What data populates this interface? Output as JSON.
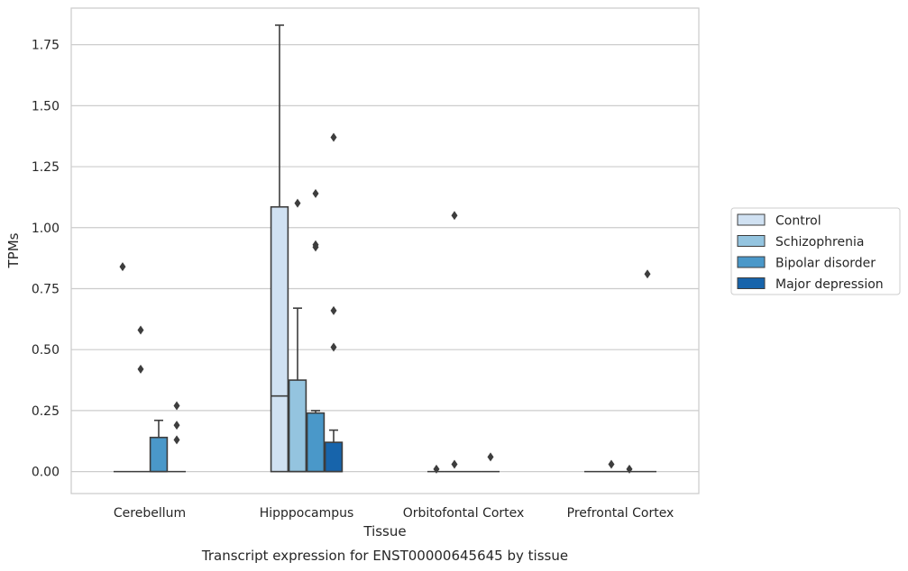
{
  "chart_data": {
    "type": "box",
    "title": "Transcript expression for ENST00000645645 by tissue",
    "xlabel": "Tissue",
    "ylabel": "TPMs",
    "categories": [
      "Cerebellum",
      "Hipppocampus",
      "Orbitofontal Cortex",
      "Prefrontal Cortex"
    ],
    "ylim": [
      -0.09,
      1.9
    ],
    "yticks": [
      0.0,
      0.25,
      0.5,
      0.75,
      1.0,
      1.25,
      1.5,
      1.75
    ],
    "ytick_labels": [
      "0.00",
      "0.25",
      "0.50",
      "0.75",
      "1.00",
      "1.25",
      "1.50",
      "1.75"
    ],
    "grid": true,
    "legend_position": "right",
    "series": [
      {
        "name": "Control",
        "color": "#d0e1f2",
        "boxes": [
          {
            "q1": 0.0,
            "median": 0.0,
            "q3": 0.0,
            "whisker_low": 0.0,
            "whisker_high": 0.0,
            "outliers": [
              0.84
            ]
          },
          {
            "q1": 0.0,
            "median": 0.31,
            "q3": 1.085,
            "whisker_low": 0.0,
            "whisker_high": 1.83,
            "outliers": []
          },
          {
            "q1": 0.0,
            "median": 0.0,
            "q3": 0.0,
            "whisker_low": 0.0,
            "whisker_high": 0.0,
            "outliers": [
              0.01
            ]
          },
          {
            "q1": 0.0,
            "median": 0.0,
            "q3": 0.0,
            "whisker_low": 0.0,
            "whisker_high": 0.0,
            "outliers": []
          }
        ]
      },
      {
        "name": "Schizophrenia",
        "color": "#94c4df",
        "boxes": [
          {
            "q1": 0.0,
            "median": 0.0,
            "q3": 0.0,
            "whisker_low": 0.0,
            "whisker_high": 0.0,
            "outliers": [
              0.58,
              0.42
            ]
          },
          {
            "q1": 0.0,
            "median": 0.0,
            "q3": 0.375,
            "whisker_low": 0.0,
            "whisker_high": 0.67,
            "outliers": [
              1.1
            ]
          },
          {
            "q1": 0.0,
            "median": 0.0,
            "q3": 0.0,
            "whisker_low": 0.0,
            "whisker_high": 0.0,
            "outliers": [
              1.05,
              0.03
            ]
          },
          {
            "q1": 0.0,
            "median": 0.0,
            "q3": 0.0,
            "whisker_low": 0.0,
            "whisker_high": 0.0,
            "outliers": [
              0.03
            ]
          }
        ]
      },
      {
        "name": "Bipolar disorder",
        "color": "#4a98c9",
        "boxes": [
          {
            "q1": 0.0,
            "median": 0.0,
            "q3": 0.14,
            "whisker_low": 0.0,
            "whisker_high": 0.21,
            "outliers": []
          },
          {
            "q1": 0.0,
            "median": 0.0,
            "q3": 0.24,
            "whisker_low": 0.0,
            "whisker_high": 0.25,
            "outliers": [
              1.14,
              0.93,
              0.92
            ]
          },
          {
            "q1": 0.0,
            "median": 0.0,
            "q3": 0.0,
            "whisker_low": 0.0,
            "whisker_high": 0.0,
            "outliers": []
          },
          {
            "q1": 0.0,
            "median": 0.0,
            "q3": 0.0,
            "whisker_low": 0.0,
            "whisker_high": 0.0,
            "outliers": [
              0.01
            ]
          }
        ]
      },
      {
        "name": "Major depression",
        "color": "#1764ab",
        "boxes": [
          {
            "q1": 0.0,
            "median": 0.0,
            "q3": 0.0,
            "whisker_low": 0.0,
            "whisker_high": 0.0,
            "outliers": [
              0.27,
              0.19,
              0.13
            ]
          },
          {
            "q1": 0.0,
            "median": 0.0,
            "q3": 0.12,
            "whisker_low": 0.0,
            "whisker_high": 0.17,
            "outliers": [
              1.37,
              0.66,
              0.51
            ]
          },
          {
            "q1": 0.0,
            "median": 0.0,
            "q3": 0.0,
            "whisker_low": 0.0,
            "whisker_high": 0.0,
            "outliers": [
              0.06
            ]
          },
          {
            "q1": 0.0,
            "median": 0.0,
            "q3": 0.0,
            "whisker_low": 0.0,
            "whisker_high": 0.0,
            "outliers": [
              0.81
            ]
          }
        ]
      }
    ]
  }
}
